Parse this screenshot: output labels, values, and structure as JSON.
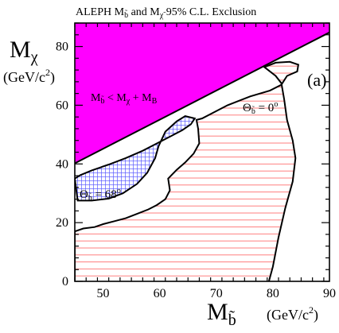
{
  "chart_data": {
    "type": "area",
    "title": "ALEPH M b̃ and Mχ̃ 95% C.L. Exclusion",
    "title_parts": {
      "prefix": "ALEPH  M",
      "sub1": "b̃",
      "mid": "  and  M",
      "sub2": "χ̃",
      "suffix": "  95%  C.L.  Exclusion"
    },
    "ylabel": {
      "main": "M",
      "sub": "χ",
      "units": "(GeV/c",
      "units_sup": "2",
      "units_end": ")"
    },
    "xlabel": {
      "main": "M",
      "sub": "b̃",
      "units": "(GeV/c",
      "units_sup": "2",
      "units_end": ")"
    },
    "xlim": [
      45,
      90
    ],
    "ylim": [
      0,
      88
    ],
    "xticks": [
      50,
      60,
      70,
      80,
      90
    ],
    "yticks": [
      0,
      20,
      40,
      60,
      80
    ],
    "panel_label": "(a)",
    "kinematic_region": {
      "label": {
        "main": "M",
        "sub1": "b̃",
        "op": " < M",
        "sub2": "χ",
        "plus": " + M",
        "sub3": "B"
      },
      "color": "#ff00ff",
      "boundary": [
        [
          45,
          40.2
        ],
        [
          90,
          84.8
        ]
      ]
    },
    "series": [
      {
        "name": "Θb̃ = 0°",
        "label": {
          "main": "Θ",
          "sub": "b̃",
          "eq": " = 0",
          "sup": "o"
        },
        "fill": "horizontal-hatch",
        "hatch_color": "#ff6060",
        "points": [
          [
            45,
            0
          ],
          [
            45,
            17.0
          ],
          [
            46.5,
            18.0
          ],
          [
            48.5,
            18.5
          ],
          [
            50,
            19.5
          ],
          [
            52,
            20.5
          ],
          [
            54,
            21.5
          ],
          [
            56,
            23.0
          ],
          [
            58,
            24.5
          ],
          [
            59.5,
            26.0
          ],
          [
            61,
            28.0
          ],
          [
            61.8,
            31.0
          ],
          [
            61.5,
            35.0
          ],
          [
            63,
            38.0
          ],
          [
            64.5,
            40.5
          ],
          [
            66,
            43.5
          ],
          [
            67,
            47.0
          ],
          [
            66.8,
            52.0
          ],
          [
            66.5,
            55.0
          ],
          [
            67.5,
            55.5
          ],
          [
            72,
            60.0
          ],
          [
            76,
            63.0
          ],
          [
            79.5,
            65.0
          ],
          [
            81.5,
            67.0
          ],
          [
            82.5,
            70.0
          ],
          [
            84.3,
            71.5
          ],
          [
            84.5,
            73.8
          ],
          [
            83,
            74.8
          ],
          [
            80.5,
            74.5
          ],
          [
            78.5,
            73.0
          ],
          [
            80.5,
            70.0
          ],
          [
            81.5,
            67.5
          ],
          [
            82.0,
            62.0
          ],
          [
            82.5,
            55.0
          ],
          [
            83.5,
            48.0
          ],
          [
            84.0,
            42.0
          ],
          [
            83.5,
            34.0
          ],
          [
            82.2,
            25.0
          ],
          [
            81.0,
            15.0
          ],
          [
            80.0,
            5.0
          ],
          [
            79.3,
            0
          ]
        ]
      },
      {
        "name": "Θb̃ = 68°",
        "label": {
          "main": "Θ",
          "sub": "b̃",
          "eq": " = 68",
          "sup": "o"
        },
        "fill": "grid-hatch",
        "hatch_color": "#6060ff",
        "points": [
          [
            45,
            35.0
          ],
          [
            46,
            36.2
          ],
          [
            48,
            37.8
          ],
          [
            51,
            39.8
          ],
          [
            54,
            42.0
          ],
          [
            57,
            44.5
          ],
          [
            60,
            47.5
          ],
          [
            62,
            49.5
          ],
          [
            64,
            51.5
          ],
          [
            65.5,
            53.5
          ],
          [
            66.2,
            55.5
          ],
          [
            64.5,
            56.3
          ],
          [
            63,
            54.5
          ],
          [
            61,
            51.0
          ],
          [
            59.8,
            46.0
          ],
          [
            59.2,
            42.0
          ],
          [
            57.8,
            37.0
          ],
          [
            56.0,
            33.2
          ],
          [
            53.5,
            30.0
          ],
          [
            51,
            28.2
          ],
          [
            48,
            27.5
          ],
          [
            45.5,
            27.5
          ]
        ]
      }
    ]
  }
}
